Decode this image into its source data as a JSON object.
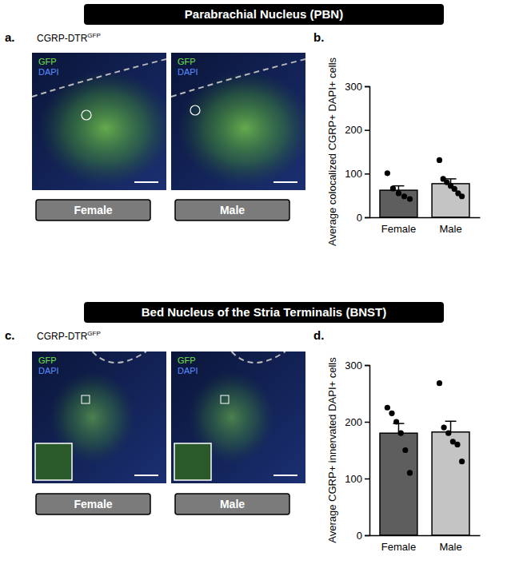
{
  "chart_data": [
    {
      "type": "bar",
      "categories": [
        "Female",
        "Male"
      ],
      "values": [
        62,
        77
      ],
      "errors": [
        10,
        11
      ],
      "points": [
        [
          101,
          66,
          55,
          48,
          42
        ],
        [
          131,
          88,
          80,
          72,
          65,
          55,
          48
        ]
      ],
      "colors": [
        "#5e5e5e",
        "#c4c4c4"
      ],
      "ylabel": "Average colocalized CGRP+ DAPI+ cells",
      "ylim": [
        0,
        300
      ],
      "yticks": [
        0,
        100,
        200,
        300
      ],
      "grid": false
    },
    {
      "type": "bar",
      "categories": [
        "Female",
        "Male"
      ],
      "values": [
        180,
        182
      ],
      "errors": [
        17,
        19
      ],
      "points": [
        [
          225,
          215,
          200,
          180,
          150,
          110
        ],
        [
          268,
          190,
          180,
          165,
          160,
          130
        ]
      ],
      "colors": [
        "#5e5e5e",
        "#c4c4c4"
      ],
      "ylabel": "Average CGRP+ innervated DAPI+ cells",
      "ylim": [
        0,
        300
      ],
      "yticks": [
        0,
        100,
        200,
        300
      ],
      "grid": false
    }
  ],
  "figure": {
    "sections": [
      {
        "title": "Parabrachial Nucleus (PBN)",
        "image_panel": {
          "letter": "a.",
          "construct": "CGRP-DTR",
          "superscript": "GFP",
          "channels": [
            "GFP",
            "DAPI"
          ],
          "image_labels": [
            "Female",
            "Male"
          ]
        },
        "chart_panel": {
          "letter": "b."
        }
      },
      {
        "title": "Bed Nucleus of the Stria Terminalis (BNST)",
        "image_panel": {
          "letter": "c.",
          "construct": "CGRP-DTR",
          "superscript": "GFP",
          "channels": [
            "GFP",
            "DAPI"
          ],
          "image_labels": [
            "Female",
            "Male"
          ]
        },
        "chart_panel": {
          "letter": "d."
        }
      }
    ]
  }
}
